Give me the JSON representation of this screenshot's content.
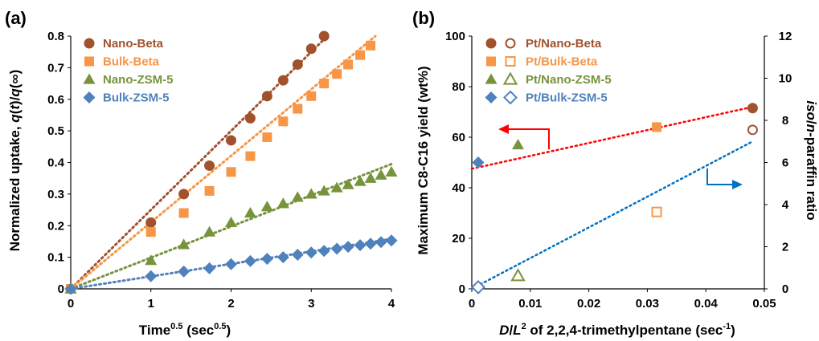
{
  "chart_data": [
    {
      "panel_label": "(a)",
      "type": "scatter",
      "xlabel": "Time",
      "xlabel_sup": "0.5",
      "xlabel_unit": "(sec",
      "xlabel_unit_sup": "0.5",
      "xlabel_unit_close": ")",
      "ylabel_prefix": "Normalized uptake, ",
      "ylabel_q1": "q",
      "ylabel_p1": "(",
      "ylabel_t": "t",
      "ylabel_p2": ")/",
      "ylabel_q2": "q",
      "ylabel_inf": "(∞)",
      "xlim": [
        0,
        4
      ],
      "ylim": [
        0,
        0.8
      ],
      "xticks": [
        "0",
        "1",
        "2",
        "3",
        "4"
      ],
      "yticks": [
        "0",
        "0.1",
        "0.2",
        "0.3",
        "0.4",
        "0.5",
        "0.6",
        "0.7",
        "0.8"
      ],
      "legend_position": "top-left",
      "series": [
        {
          "name": "Nano-Beta",
          "marker": "circle",
          "color": "#A0522D",
          "x": [
            0,
            1,
            1.41,
            1.73,
            2,
            2.24,
            2.45,
            2.65,
            2.83,
            3,
            3.16
          ],
          "y": [
            0,
            0.21,
            0.3,
            0.39,
            0.47,
            0.54,
            0.61,
            0.66,
            0.71,
            0.76,
            0.8
          ],
          "trend": [
            [
              0,
              0
            ],
            [
              3.2,
              0.8
            ]
          ]
        },
        {
          "name": "Bulk-Beta",
          "marker": "square",
          "color": "#F79646",
          "x": [
            0,
            1,
            1.41,
            1.73,
            2,
            2.24,
            2.45,
            2.65,
            2.83,
            3,
            3.16,
            3.32,
            3.46,
            3.61,
            3.74
          ],
          "y": [
            0,
            0.18,
            0.24,
            0.31,
            0.37,
            0.42,
            0.48,
            0.53,
            0.57,
            0.61,
            0.65,
            0.68,
            0.71,
            0.74,
            0.77
          ],
          "trend": [
            [
              0,
              0
            ],
            [
              3.8,
              0.8
            ]
          ]
        },
        {
          "name": "Nano-ZSM-5",
          "marker": "triangle",
          "color": "#77933C",
          "x": [
            0,
            1,
            1.41,
            1.73,
            2,
            2.24,
            2.45,
            2.65,
            2.83,
            3,
            3.16,
            3.32,
            3.46,
            3.61,
            3.74,
            3.87,
            4
          ],
          "y": [
            0,
            0.09,
            0.14,
            0.18,
            0.21,
            0.24,
            0.26,
            0.27,
            0.29,
            0.3,
            0.31,
            0.32,
            0.33,
            0.34,
            0.35,
            0.36,
            0.37
          ],
          "trend": [
            [
              0,
              0
            ],
            [
              4,
              0.395
            ]
          ]
        },
        {
          "name": "Bulk-ZSM-5",
          "marker": "diamond",
          "color": "#4F81BD",
          "x": [
            0,
            1,
            1.41,
            1.73,
            2,
            2.24,
            2.45,
            2.65,
            2.83,
            3,
            3.16,
            3.32,
            3.46,
            3.61,
            3.74,
            3.87,
            4
          ],
          "y": [
            0,
            0.04,
            0.055,
            0.065,
            0.078,
            0.088,
            0.095,
            0.1,
            0.108,
            0.115,
            0.12,
            0.127,
            0.133,
            0.138,
            0.143,
            0.148,
            0.153
          ],
          "trend": [
            [
              0,
              0
            ],
            [
              4,
              0.158
            ]
          ]
        }
      ]
    },
    {
      "panel_label": "(b)",
      "type": "scatter",
      "xlabel_D": "D",
      "xlabel_slash": "/",
      "xlabel_L": "L",
      "xlabel_sup": "2",
      "xlabel_rest": " of 2,2,4-trimethylpentane (sec",
      "xlabel_unit_sup": "-1",
      "xlabel_close": ")",
      "ylabel": "Maximum C8-C16 yield (wt%)",
      "ylabel2_iso": "iso",
      "ylabel2_slash": "/",
      "ylabel2_n": "n",
      "ylabel2_rest": "-paraffin ratio",
      "xlim": [
        0,
        0.05
      ],
      "ylim": [
        0,
        100
      ],
      "y2lim": [
        0,
        12
      ],
      "xticks": [
        "0",
        "0.01",
        "0.02",
        "0.03",
        "0.04",
        "0.05"
      ],
      "yticks": [
        "0",
        "20",
        "40",
        "60",
        "80",
        "100"
      ],
      "y2ticks": [
        "0",
        "2",
        "4",
        "6",
        "8",
        "10",
        "12"
      ],
      "legend_position": "top-left",
      "series": [
        {
          "name": "Pt/Nano-Beta",
          "color": "#A0522D",
          "filled_marker": "circle",
          "open_marker": "circle",
          "x": 0.048,
          "yield": 71.5,
          "ratio": 7.55
        },
        {
          "name": "Pt/Bulk-Beta",
          "color": "#F79646",
          "filled_marker": "square",
          "open_marker": "square",
          "x": 0.0316,
          "yield": 64,
          "ratio": 3.65
        },
        {
          "name": "Pt/Nano-ZSM-5",
          "color": "#77933C",
          "filled_marker": "triangle",
          "open_marker": "triangle",
          "x": 0.0079,
          "yield": 57,
          "ratio": 0.62
        },
        {
          "name": "Pt/Bulk-ZSM-5",
          "color": "#4F81BD",
          "filled_marker": "diamond",
          "open_marker": "diamond",
          "x": 0.0011,
          "yield": 50,
          "ratio": 0.08
        }
      ],
      "trend_yield": {
        "color": "#FF0000",
        "points": [
          [
            0,
            47.5
          ],
          [
            0.048,
            72
          ]
        ]
      },
      "trend_ratio": {
        "color": "#0070C0",
        "points": [
          [
            0,
            0
          ],
          [
            0.048,
            7.0
          ]
        ]
      },
      "arrow_left_color": "#FF0000",
      "arrow_right_color": "#0070C0"
    }
  ]
}
